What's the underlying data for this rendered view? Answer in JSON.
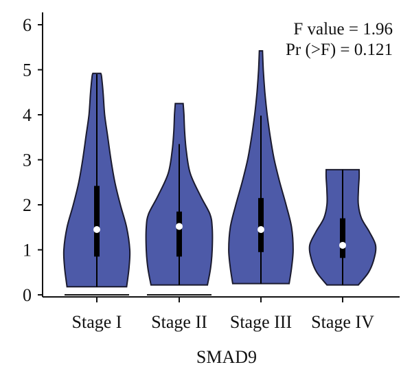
{
  "chart_data": {
    "type": "violin",
    "title": "",
    "xlabel": "SMAD9",
    "ylabel": "",
    "ylim": [
      0,
      6.1
    ],
    "yticks": [
      0,
      1,
      2,
      3,
      4,
      5,
      6
    ],
    "grid": false,
    "legend": "none",
    "annotation": [
      "F value = 1.96",
      "Pr (>F) = 0.121"
    ],
    "categories": [
      "Stage I",
      "Stage II",
      "Stage III",
      "Stage IV"
    ],
    "series": [
      {
        "min": 0.18,
        "max": 4.92,
        "q1": 0.85,
        "median": 1.45,
        "q3": 2.42,
        "whisker_high": 4.9,
        "density": [
          [
            0.18,
            0.38
          ],
          [
            0.6,
            0.41
          ],
          [
            1.0,
            0.42
          ],
          [
            1.5,
            0.38
          ],
          [
            2.0,
            0.3
          ],
          [
            2.5,
            0.23
          ],
          [
            3.0,
            0.18
          ],
          [
            3.5,
            0.14
          ],
          [
            4.0,
            0.1
          ],
          [
            4.5,
            0.08
          ],
          [
            4.85,
            0.06
          ],
          [
            4.92,
            0.05
          ]
        ]
      },
      {
        "min": 0.22,
        "max": 4.25,
        "q1": 0.85,
        "median": 1.52,
        "q3": 1.85,
        "whisker_high": 3.35,
        "density": [
          [
            0.22,
            0.36
          ],
          [
            0.6,
            0.4
          ],
          [
            1.0,
            0.42
          ],
          [
            1.5,
            0.42
          ],
          [
            1.8,
            0.39
          ],
          [
            2.2,
            0.27
          ],
          [
            2.7,
            0.14
          ],
          [
            3.2,
            0.09
          ],
          [
            3.6,
            0.07
          ],
          [
            4.0,
            0.06
          ],
          [
            4.25,
            0.05
          ]
        ]
      },
      {
        "min": 0.25,
        "max": 5.42,
        "q1": 0.95,
        "median": 1.45,
        "q3": 2.15,
        "whisker_high": 3.98,
        "density": [
          [
            0.25,
            0.36
          ],
          [
            0.6,
            0.39
          ],
          [
            1.0,
            0.41
          ],
          [
            1.5,
            0.39
          ],
          [
            2.0,
            0.32
          ],
          [
            2.5,
            0.24
          ],
          [
            3.0,
            0.17
          ],
          [
            3.5,
            0.12
          ],
          [
            4.0,
            0.08
          ],
          [
            4.5,
            0.05
          ],
          [
            5.0,
            0.03
          ],
          [
            5.42,
            0.02
          ]
        ]
      },
      {
        "min": 0.22,
        "max": 2.78,
        "q1": 0.82,
        "median": 1.1,
        "q3": 1.7,
        "whisker_high": 2.78,
        "density": [
          [
            0.22,
            0.2
          ],
          [
            0.5,
            0.33
          ],
          [
            0.8,
            0.4
          ],
          [
            1.1,
            0.42
          ],
          [
            1.4,
            0.34
          ],
          [
            1.7,
            0.24
          ],
          [
            2.0,
            0.2
          ],
          [
            2.3,
            0.2
          ],
          [
            2.6,
            0.21
          ],
          [
            2.78,
            0.21
          ]
        ]
      }
    ],
    "baseline_lines": [
      {
        "category": "Stage I",
        "value": 0.0
      },
      {
        "category": "Stage II",
        "value": 0.0
      }
    ],
    "colors": {
      "violin_fill": "#4d5aa8",
      "violin_stroke": "#1a1a2e",
      "box": "#000000",
      "median_dot": "#ffffff",
      "axis": "#111111"
    }
  }
}
